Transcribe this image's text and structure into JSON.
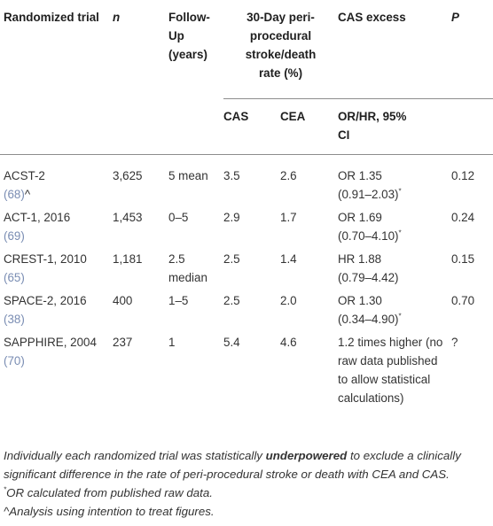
{
  "headers": {
    "trial": "Randomized trial",
    "n": "n",
    "followup": "Follow-Up (years)",
    "rate": "30-Day peri-procedural stroke/death rate (%)",
    "excess": "CAS excess",
    "p": "P",
    "cas": "CAS",
    "cea": "CEA",
    "orhr": "OR/HR, 95% CI"
  },
  "rows": [
    {
      "trial": "ACST-2",
      "ref": "(68)",
      "ref_suffix": "^",
      "n": "3,625",
      "followup": "5 mean",
      "cas": "3.5",
      "cea": "2.6",
      "excess_a": "OR 1.35",
      "excess_b": "(0.91–2.03)",
      "excess_star": "*",
      "p": "0.12"
    },
    {
      "trial": "ACT-1, 2016",
      "ref": "(69)",
      "ref_suffix": "",
      "n": "1,453",
      "followup": "0–5",
      "cas": "2.9",
      "cea": "1.7",
      "excess_a": "OR 1.69",
      "excess_b": "(0.70–4.10)",
      "excess_star": "*",
      "p": "0.24"
    },
    {
      "trial": "CREST-1, 2010",
      "ref": "(65)",
      "ref_suffix": "",
      "n": "1,181",
      "followup": "2.5 median",
      "cas": "2.5",
      "cea": "1.4",
      "excess_a": "HR 1.88",
      "excess_b": "(0.79–4.42)",
      "excess_star": "",
      "p": "0.15"
    },
    {
      "trial": "SPACE-2, 2016",
      "ref": "(38)",
      "ref_suffix": "",
      "n": "400",
      "followup": "1–5",
      "cas": "2.5",
      "cea": "2.0",
      "excess_a": "OR 1.30",
      "excess_b": "(0.34–4.90)",
      "excess_star": "*",
      "p": "0.70"
    },
    {
      "trial": "SAPPHIRE, 2004",
      "ref": "(70)",
      "ref_suffix": "",
      "n": "237",
      "followup": "1",
      "cas": "5.4",
      "cea": "4.6",
      "excess_a": "1.2 times higher (no raw data published to allow statistical calculations)",
      "excess_b": "",
      "excess_star": "",
      "p": "?"
    }
  ],
  "footnotes": {
    "line1_pre": "Individually each randomized trial was statistically ",
    "line1_bold": "underpowered",
    "line1_post": " to exclude a clinically significant difference in the rate of peri-procedural stroke or death with CEA and CAS.",
    "line2_mark": "*",
    "line2": "OR calculated from published raw data.",
    "line3": "^Analysis using intention to treat figures."
  }
}
